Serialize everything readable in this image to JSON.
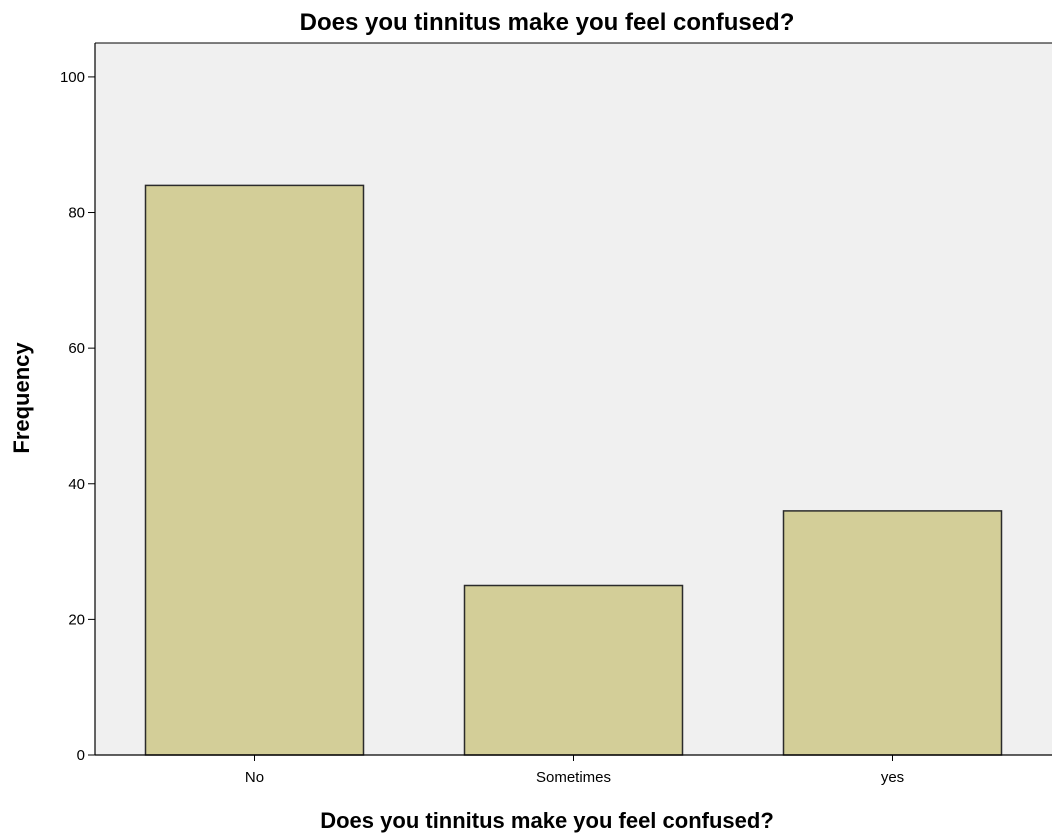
{
  "chart_data": {
    "type": "bar",
    "title": "Does you tinnitus make you feel confused?",
    "xlabel": "Does you tinnitus make you feel confused?",
    "ylabel": "Frequency",
    "categories": [
      "No",
      "Sometimes",
      "yes"
    ],
    "values": [
      84,
      25,
      36
    ],
    "ylim": [
      0,
      100
    ],
    "yticks": [
      0,
      20,
      40,
      60,
      80,
      100
    ],
    "grid": false,
    "legend": "none",
    "colors": {
      "plot_background": "#f0f0f0",
      "bar_fill": "#d3ce98",
      "bar_stroke": "#2b2b2b",
      "axis": "#000000"
    }
  }
}
